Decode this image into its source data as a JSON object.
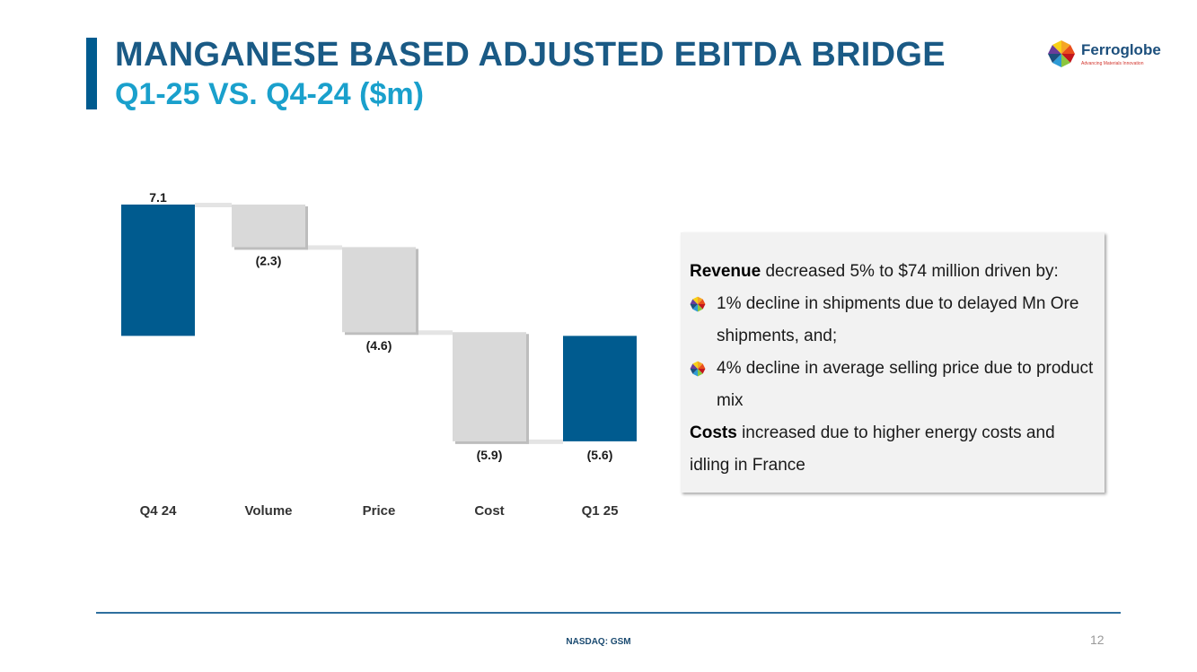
{
  "header": {
    "title": "MANGANESE BASED ADJUSTED EBITDA BRIDGE",
    "subtitle": "Q1-25 VS. Q4-24 ($m)"
  },
  "logo": {
    "name": "Ferroglobe",
    "tagline": "Advancing Materials Innovation"
  },
  "chart_data": {
    "type": "bar",
    "subtype": "waterfall",
    "categories": [
      "Q4 24",
      "Volume",
      "Price",
      "Cost",
      "Q1 25"
    ],
    "values": [
      7.1,
      -2.3,
      -4.6,
      -5.9,
      -5.6
    ],
    "value_labels": [
      "7.1",
      "(2.3)",
      "(4.6)",
      "(5.9)",
      "(5.6)"
    ],
    "bar_kinds": [
      "total",
      "delta",
      "delta",
      "delta",
      "total"
    ],
    "colors": {
      "total": "#005b8f",
      "delta": "#d9d9d9",
      "connector": "#e4e4e4"
    },
    "ylim": [
      -5.9,
      7.1
    ],
    "grid": false,
    "legend": "none"
  },
  "textbox": {
    "revenue_bold": "Revenue",
    "revenue_text": " decreased 5% to $74 million driven by:",
    "bullets": [
      "1% decline in shipments due to delayed Mn Ore shipments, and;",
      "4% decline in average selling price due to product mix"
    ],
    "costs_bold": "Costs",
    "costs_text": " increased due to higher energy costs and idling in France",
    "bullet_icon": "ferroglobe-logo-icon"
  },
  "footer": {
    "ticker": "NASDAQ: GSM",
    "page_number": "12"
  }
}
